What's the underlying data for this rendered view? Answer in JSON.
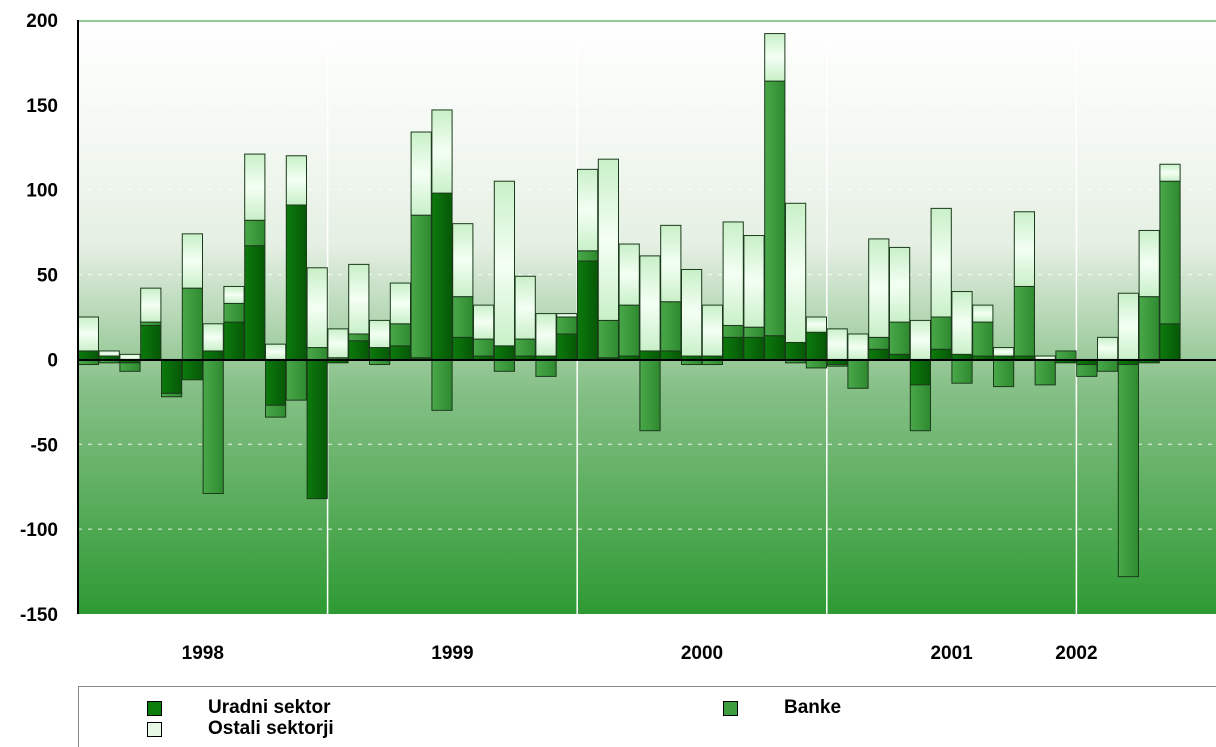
{
  "chart_data": {
    "type": "bar",
    "stacked": true,
    "ylim": [
      -150,
      200
    ],
    "yticks": [
      200,
      150,
      100,
      50,
      0,
      -50,
      -100,
      -150
    ],
    "year_labels": [
      "1998",
      "1999",
      "2000",
      "2001",
      "2002"
    ],
    "grid": true,
    "legend_position": "bottom",
    "colors": {
      "Uradni sektor": "#0a7d0a",
      "Banke": "#3d9e3d",
      "Ostali sektorji": "#e6fae6"
    },
    "series": [
      {
        "name": "Uradni sektor",
        "values": [
          5,
          2,
          -2,
          20,
          -20,
          -12,
          5,
          22,
          67,
          -27,
          91,
          -82,
          -2,
          11,
          7,
          8,
          1,
          98,
          13,
          2,
          8,
          2,
          2,
          15,
          58,
          1,
          2,
          5,
          5,
          2,
          2,
          13,
          13,
          14,
          10,
          16,
          -3,
          0,
          6,
          3,
          -15,
          6,
          3,
          2,
          2,
          2,
          0,
          -2,
          -3,
          0,
          -3,
          -2,
          21
        ]
      },
      {
        "name": "Banke",
        "values": [
          -3,
          -2,
          -5,
          2,
          -2,
          42,
          -79,
          11,
          15,
          -7,
          -24,
          7,
          1,
          4,
          -3,
          13,
          84,
          -30,
          24,
          10,
          -7,
          10,
          -10,
          10,
          6,
          22,
          30,
          -42,
          29,
          -3,
          -3,
          7,
          6,
          150,
          -2,
          -5,
          -1,
          -17,
          7,
          19,
          -27,
          19,
          -14,
          20,
          -16,
          41,
          -15,
          5,
          -7,
          -7,
          -125,
          37,
          84
        ]
      },
      {
        "name": "Ostali sektorji",
        "values": [
          20,
          3,
          3,
          20,
          0,
          32,
          16,
          10,
          39,
          9,
          29,
          47,
          17,
          41,
          16,
          24,
          49,
          49,
          43,
          20,
          97,
          37,
          25,
          2,
          48,
          95,
          36,
          56,
          45,
          51,
          30,
          61,
          54,
          28,
          82,
          9,
          18,
          15,
          58,
          44,
          23,
          64,
          37,
          10,
          5,
          44,
          2,
          0,
          0,
          13,
          39,
          39,
          10
        ]
      }
    ]
  }
}
